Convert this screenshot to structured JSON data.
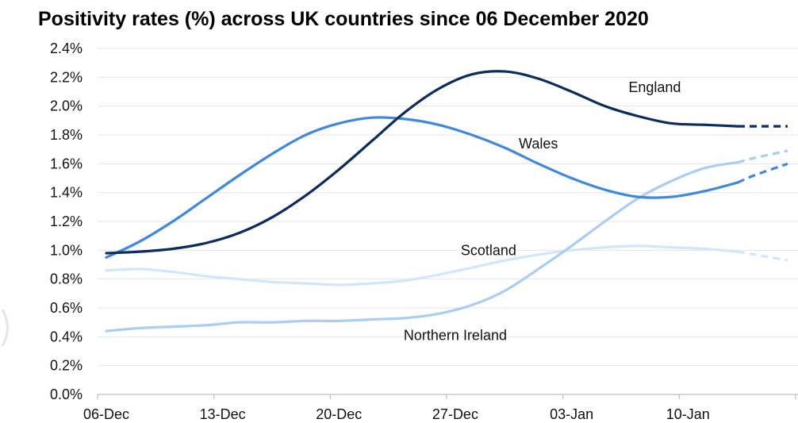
{
  "chart_data": {
    "type": "line",
    "title": "Positivity rates (%) across UK countries since 06 December 2020",
    "xlabel": "",
    "ylabel": "",
    "ylim": [
      0.0,
      2.4
    ],
    "y_ticks": [
      "0.0%",
      "0.2%",
      "0.4%",
      "0.6%",
      "0.8%",
      "1.0%",
      "1.2%",
      "1.4%",
      "1.6%",
      "1.8%",
      "2.0%",
      "2.2%",
      "2.4%"
    ],
    "x_ticks": [
      "06-Dec",
      "13-Dec",
      "20-Dec",
      "27-Dec",
      "03-Jan",
      "10-Jan"
    ],
    "x_range": [
      "2020-12-06",
      "2021-01-16"
    ],
    "grid": "horizontal",
    "legend": "inline labels",
    "dashed_after": "2021-01-13",
    "series": [
      {
        "name": "England",
        "color": "#0b2c5e",
        "x": [
          "2020-12-06",
          "2020-12-08",
          "2020-12-10",
          "2020-12-12",
          "2020-12-14",
          "2020-12-16",
          "2020-12-18",
          "2020-12-20",
          "2020-12-22",
          "2020-12-24",
          "2020-12-26",
          "2020-12-28",
          "2020-12-30",
          "2021-01-01",
          "2021-01-03",
          "2021-01-05",
          "2021-01-07",
          "2021-01-09",
          "2021-01-11",
          "2021-01-13",
          "2021-01-14",
          "2021-01-16"
        ],
        "values": [
          0.98,
          0.99,
          1.01,
          1.05,
          1.12,
          1.23,
          1.38,
          1.56,
          1.76,
          1.96,
          2.12,
          2.22,
          2.24,
          2.19,
          2.1,
          2.0,
          1.93,
          1.88,
          1.87,
          1.86,
          1.86,
          1.86
        ]
      },
      {
        "name": "Wales",
        "color": "#3f88e0",
        "x": [
          "2020-12-06",
          "2020-12-08",
          "2020-12-10",
          "2020-12-12",
          "2020-12-14",
          "2020-12-16",
          "2020-12-18",
          "2020-12-20",
          "2020-12-22",
          "2020-12-24",
          "2020-12-26",
          "2020-12-28",
          "2020-12-30",
          "2021-01-01",
          "2021-01-03",
          "2021-01-05",
          "2021-01-07",
          "2021-01-09",
          "2021-01-11",
          "2021-01-13",
          "2021-01-14",
          "2021-01-16"
        ],
        "values": [
          0.95,
          1.06,
          1.2,
          1.36,
          1.52,
          1.67,
          1.8,
          1.88,
          1.92,
          1.91,
          1.87,
          1.8,
          1.71,
          1.6,
          1.5,
          1.42,
          1.37,
          1.37,
          1.41,
          1.47,
          1.52,
          1.6
        ]
      },
      {
        "name": "Scotland",
        "color": "#d2e6fb",
        "x": [
          "2020-12-06",
          "2020-12-08",
          "2020-12-10",
          "2020-12-12",
          "2020-12-14",
          "2020-12-16",
          "2020-12-18",
          "2020-12-20",
          "2020-12-22",
          "2020-12-24",
          "2020-12-26",
          "2020-12-28",
          "2020-12-30",
          "2021-01-01",
          "2021-01-03",
          "2021-01-05",
          "2021-01-07",
          "2021-01-09",
          "2021-01-11",
          "2021-01-13",
          "2021-01-14",
          "2021-01-16"
        ],
        "values": [
          0.86,
          0.87,
          0.85,
          0.82,
          0.8,
          0.78,
          0.77,
          0.76,
          0.77,
          0.79,
          0.83,
          0.88,
          0.93,
          0.97,
          1.0,
          1.02,
          1.03,
          1.02,
          1.01,
          0.99,
          0.97,
          0.93
        ]
      },
      {
        "name": "Northern Ireland",
        "color": "#a9cdf4",
        "x": [
          "2020-12-06",
          "2020-12-08",
          "2020-12-10",
          "2020-12-12",
          "2020-12-14",
          "2020-12-16",
          "2020-12-18",
          "2020-12-20",
          "2020-12-22",
          "2020-12-24",
          "2020-12-26",
          "2020-12-28",
          "2020-12-30",
          "2021-01-01",
          "2021-01-03",
          "2021-01-05",
          "2021-01-07",
          "2021-01-09",
          "2021-01-11",
          "2021-01-13",
          "2021-01-14",
          "2021-01-16"
        ],
        "values": [
          0.44,
          0.46,
          0.47,
          0.48,
          0.5,
          0.5,
          0.51,
          0.51,
          0.52,
          0.53,
          0.56,
          0.62,
          0.72,
          0.87,
          1.03,
          1.2,
          1.36,
          1.48,
          1.57,
          1.61,
          1.64,
          1.69
        ]
      }
    ],
    "labels": [
      {
        "series": "England",
        "text": "England",
        "x": "2021-01-08",
        "y": 2.13
      },
      {
        "series": "Wales",
        "text": "Wales",
        "x": "2021-01-01",
        "y": 1.74
      },
      {
        "series": "Scotland",
        "text": "Scotland",
        "x": "2020-12-29",
        "y": 1.0
      },
      {
        "series": "Northern Ireland",
        "text": "Northern Ireland",
        "x": "2020-12-27",
        "y": 0.41
      }
    ]
  }
}
